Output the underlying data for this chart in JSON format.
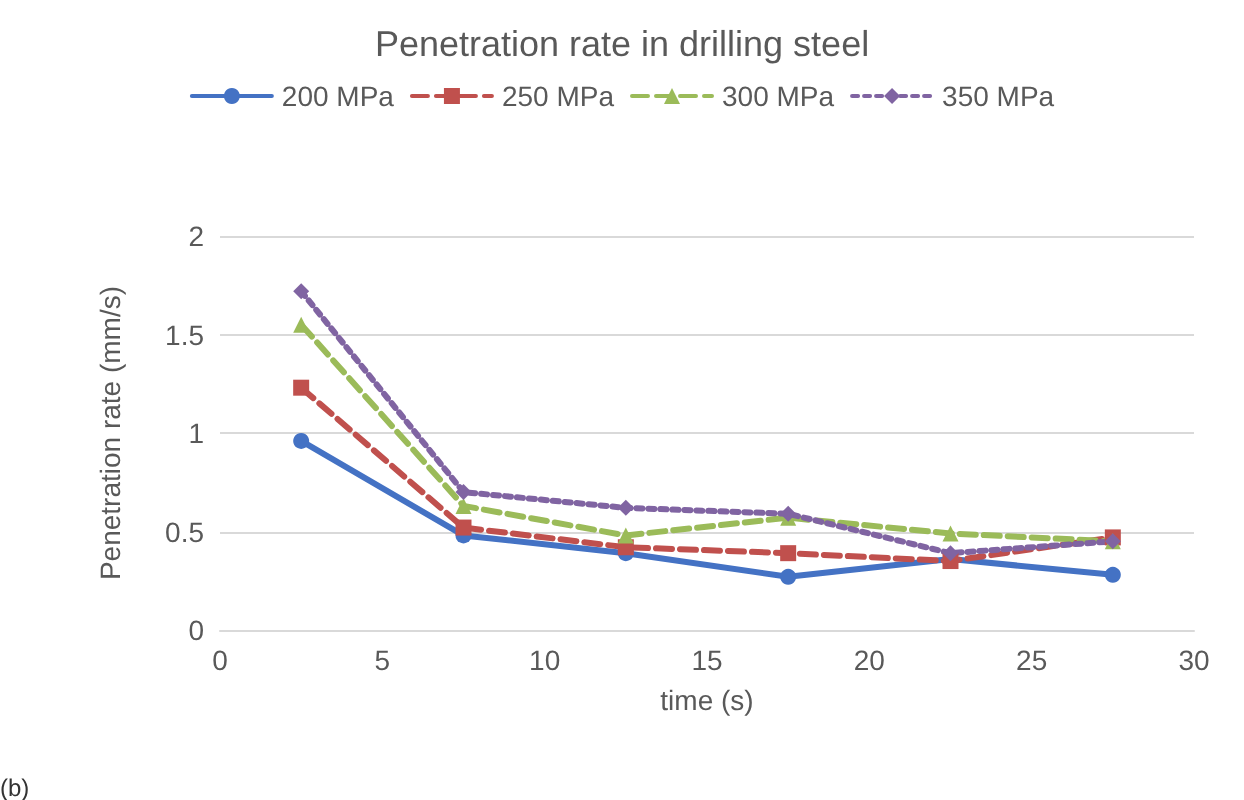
{
  "chart_data": {
    "type": "line",
    "title": "Penetration rate in drilling steel",
    "xlabel": "time (s)",
    "ylabel": "Penetration rate (mm/s)",
    "x": [
      2.5,
      7.5,
      12.5,
      17.5,
      22.5,
      27.5
    ],
    "series": [
      {
        "name": "200 MPa",
        "color": "#4472c4",
        "marker": "circle",
        "line_style": "solid",
        "values": [
          0.96,
          0.48,
          0.39,
          0.27,
          0.36,
          0.28
        ]
      },
      {
        "name": "250 MPa",
        "color": "#c0504d",
        "marker": "square",
        "line_style": "dashed",
        "values": [
          1.23,
          0.52,
          0.42,
          0.39,
          0.35,
          0.47
        ]
      },
      {
        "name": "300 MPa",
        "color": "#9bbb59",
        "marker": "triangle",
        "line_style": "dashed",
        "values": [
          1.55,
          0.63,
          0.48,
          0.57,
          0.49,
          0.45
        ]
      },
      {
        "name": "350 MPa",
        "color": "#8064a2",
        "marker": "diamond",
        "line_style": "dotted",
        "values": [
          1.72,
          0.7,
          0.62,
          0.59,
          0.39,
          0.45
        ]
      }
    ],
    "xlim": [
      0,
      30
    ],
    "xticks": [
      0,
      5,
      10,
      15,
      20,
      25,
      30
    ],
    "ylim": [
      0,
      2
    ],
    "yticks": [
      0,
      0.5,
      1,
      1.5,
      2
    ],
    "grid": "y",
    "legend": "top",
    "annotations": [
      "(b)"
    ]
  }
}
